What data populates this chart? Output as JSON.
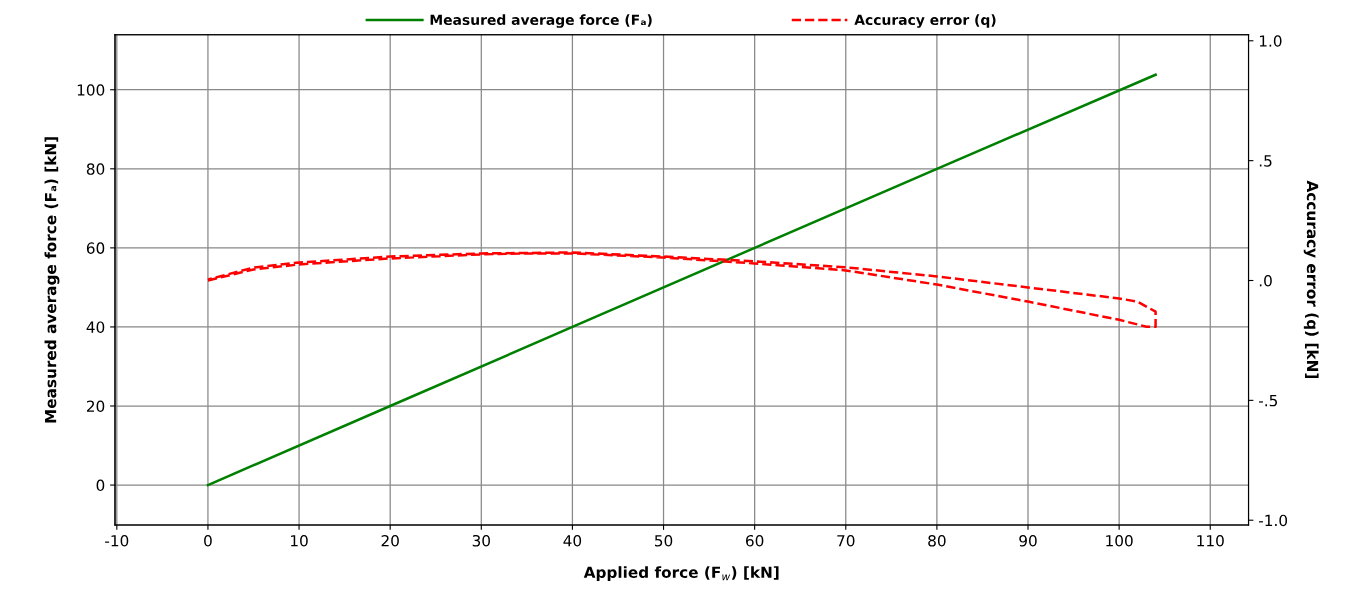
{
  "chart_data": {
    "type": "line",
    "xlabel": "Applied force (F$_{w}$) [kN]",
    "ylabel": "Measured average force (Fₐ) [kN]",
    "y2label": "Accuracy error (q) [kN]",
    "xlim": [
      -10.2,
      114.2
    ],
    "xticks": [
      -10,
      0,
      10,
      20,
      30,
      40,
      50,
      60,
      70,
      80,
      90,
      100,
      110
    ],
    "ylim": [
      -10.1,
      113.9
    ],
    "yticks": [
      0,
      20,
      40,
      60,
      80,
      100
    ],
    "y2lim": [
      -1.02,
      1.025
    ],
    "y2ticks": [
      {
        "value": 1.0,
        "label": "1.0"
      },
      {
        "value": 0.5,
        "label": ".5"
      },
      {
        "value": 0.0,
        "label": ".0"
      },
      {
        "value": -0.5,
        "label": "-.5"
      },
      {
        "value": -1.0,
        "label": "-1.0"
      }
    ],
    "grid": true,
    "legend": "top",
    "series": [
      {
        "name": "Measured average force (Fₐ)",
        "color": "#008000",
        "line_style": "solid",
        "x": [
          0,
          20,
          40,
          60,
          80,
          104
        ],
        "values": [
          0,
          20,
          40,
          60,
          80,
          103.8
        ]
      },
      {
        "name": "Accuracy error (q)",
        "color": "#ff0000",
        "line_style": "dashed",
        "axis": "y2",
        "x": [
          0,
          5,
          10,
          20,
          30,
          35,
          40,
          50,
          60,
          70,
          80,
          90,
          100,
          103,
          104,
          104,
          102,
          100,
          90,
          80,
          70,
          60,
          50,
          40,
          30,
          20,
          10,
          5,
          0
        ],
        "values": [
          0.0,
          0.046,
          0.067,
          0.092,
          0.109,
          0.113,
          0.113,
          0.096,
          0.071,
          0.042,
          -0.017,
          -0.088,
          -0.164,
          -0.193,
          -0.193,
          -0.13,
          -0.088,
          -0.075,
          -0.029,
          0.017,
          0.055,
          0.08,
          0.1,
          0.117,
          0.113,
          0.1,
          0.075,
          0.054,
          0.004
        ]
      }
    ]
  }
}
